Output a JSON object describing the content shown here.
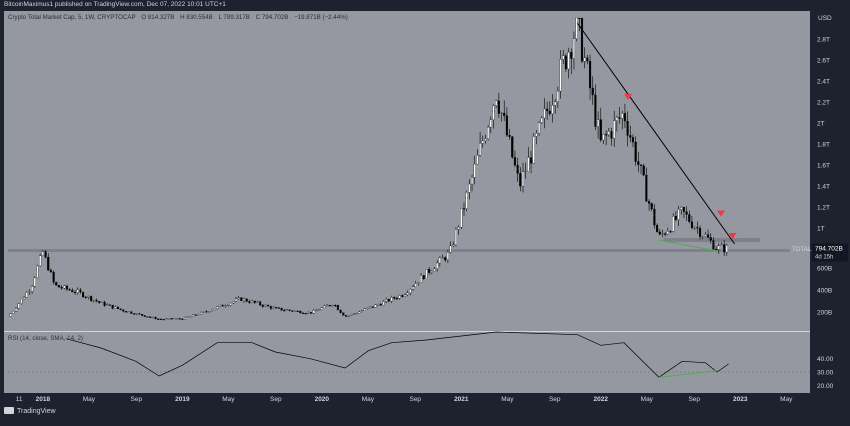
{
  "header": {
    "publisher_line": "BitcoinMaximus1 published on TradingView.com, Dec 07, 2022 10:01 UTC+1"
  },
  "symbol": {
    "name": "Crypto Total Market Cap, 5, 1W, CRYPTOCAP",
    "open": "O 814.327B",
    "high": "H 830.554B",
    "low": "L 789.317B",
    "close": "C 794.702B",
    "change": "−19.871B (−2.44%)"
  },
  "price_axis": {
    "unit": "USD",
    "ticks": [
      {
        "label": "2.8T",
        "value": 2800
      },
      {
        "label": "2.6T",
        "value": 2600
      },
      {
        "label": "2.4T",
        "value": 2400
      },
      {
        "label": "2.2T",
        "value": 2200
      },
      {
        "label": "2T",
        "value": 2000
      },
      {
        "label": "1.8T",
        "value": 1800
      },
      {
        "label": "1.6T",
        "value": 1600
      },
      {
        "label": "1.4T",
        "value": 1400
      },
      {
        "label": "1.2T",
        "value": 1200
      },
      {
        "label": "1T",
        "value": 1000
      },
      {
        "label": "600B",
        "value": 600
      },
      {
        "label": "400B",
        "value": 400
      },
      {
        "label": "200B",
        "value": 200
      }
    ],
    "total_tag": {
      "label": "TOTAL",
      "value": "794.702B",
      "countdown": "4d 15h"
    }
  },
  "rsi_panel": {
    "label": "RSI (14, close, SMA, 14, 2)",
    "ticks": [
      {
        "label": "40.00",
        "value": 40
      },
      {
        "label": "30.00",
        "value": 30
      },
      {
        "label": "20.00",
        "value": 20
      }
    ]
  },
  "time_axis": {
    "labels": [
      "11",
      "2018",
      "May",
      "Sep",
      "2019",
      "May",
      "Sep",
      "2020",
      "May",
      "Sep",
      "2021",
      "May",
      "Sep",
      "2022",
      "May",
      "Sep",
      "2023",
      "May"
    ]
  },
  "brand": {
    "label": "TradingView"
  },
  "colors": {
    "chart_bg": "#9598a1",
    "page_bg": "#1e222d",
    "candle_up": "#ffffff",
    "candle_down": "#000000",
    "marker": "#f23645",
    "rsi_divergence": "#4caf50",
    "support_band": "#787b86"
  },
  "chart_data": {
    "type": "candlestick",
    "title": "Crypto Total Market Cap, 5, 1W, CRYPTOCAP",
    "unit": "USD (billions)",
    "ylim": [
      0,
      3000
    ],
    "xlim": [
      "2017-10",
      "2023-07"
    ],
    "grid": false,
    "series": [
      {
        "name": "TOTAL",
        "weekly_close_approx": [
          {
            "x": "2017-10",
            "y": 150
          },
          {
            "x": "2017-12",
            "y": 430
          },
          {
            "x": "2018-01",
            "y": 760
          },
          {
            "x": "2018-02",
            "y": 440
          },
          {
            "x": "2018-04",
            "y": 380
          },
          {
            "x": "2018-06",
            "y": 280
          },
          {
            "x": "2018-08",
            "y": 210
          },
          {
            "x": "2018-11",
            "y": 120
          },
          {
            "x": "2019-01",
            "y": 125
          },
          {
            "x": "2019-06",
            "y": 320
          },
          {
            "x": "2019-09",
            "y": 230
          },
          {
            "x": "2019-12",
            "y": 190
          },
          {
            "x": "2020-02",
            "y": 280
          },
          {
            "x": "2020-03",
            "y": 150
          },
          {
            "x": "2020-08",
            "y": 360
          },
          {
            "x": "2020-12",
            "y": 750
          },
          {
            "x": "2021-02",
            "y": 1500
          },
          {
            "x": "2021-04",
            "y": 2300
          },
          {
            "x": "2021-06",
            "y": 1400
          },
          {
            "x": "2021-08",
            "y": 2000
          },
          {
            "x": "2021-11",
            "y": 2950
          },
          {
            "x": "2022-01",
            "y": 1800
          },
          {
            "x": "2022-03",
            "y": 2100
          },
          {
            "x": "2022-06",
            "y": 900
          },
          {
            "x": "2022-08",
            "y": 1150
          },
          {
            "x": "2022-11",
            "y": 800
          },
          {
            "x": "2022-12",
            "y": 795
          }
        ]
      }
    ],
    "annotations": {
      "descending_trendline": [
        {
          "x": "2021-11",
          "y": 2950
        },
        {
          "x": "2022-12",
          "y": 840
        }
      ],
      "support_band": {
        "low": 760,
        "high": 790
      },
      "minor_band": {
        "low": 860,
        "high": 900
      },
      "red_markers": [
        {
          "x": "2022-03",
          "y": 2220
        },
        {
          "x": "2022-11",
          "y": 1110
        },
        {
          "x": "2022-12",
          "y": 890
        }
      ],
      "price_divergence_line": [
        {
          "x": "2022-06",
          "y": 880
        },
        {
          "x": "2022-11",
          "y": 770
        }
      ]
    },
    "rsi": {
      "ylim": [
        15,
        60
      ],
      "reference_line": 30,
      "values_approx": [
        {
          "x": "2018-03",
          "y": 55
        },
        {
          "x": "2018-06",
          "y": 48
        },
        {
          "x": "2018-09",
          "y": 38
        },
        {
          "x": "2018-11",
          "y": 27
        },
        {
          "x": "2019-01",
          "y": 35
        },
        {
          "x": "2019-04",
          "y": 52
        },
        {
          "x": "2019-07",
          "y": 52
        },
        {
          "x": "2019-09",
          "y": 45
        },
        {
          "x": "2019-12",
          "y": 40
        },
        {
          "x": "2020-03",
          "y": 33
        },
        {
          "x": "2020-05",
          "y": 46
        },
        {
          "x": "2020-07",
          "y": 52
        },
        {
          "x": "2020-10",
          "y": 54
        },
        {
          "x": "2021-04",
          "y": 60
        },
        {
          "x": "2021-11",
          "y": 58
        },
        {
          "x": "2022-01",
          "y": 50
        },
        {
          "x": "2022-03",
          "y": 52
        },
        {
          "x": "2022-06",
          "y": 26
        },
        {
          "x": "2022-08",
          "y": 38
        },
        {
          "x": "2022-10",
          "y": 37
        },
        {
          "x": "2022-11",
          "y": 30
        },
        {
          "x": "2022-12",
          "y": 36
        }
      ],
      "divergence_line": [
        {
          "x": "2022-06",
          "y": 26
        },
        {
          "x": "2022-11",
          "y": 31
        }
      ]
    }
  }
}
